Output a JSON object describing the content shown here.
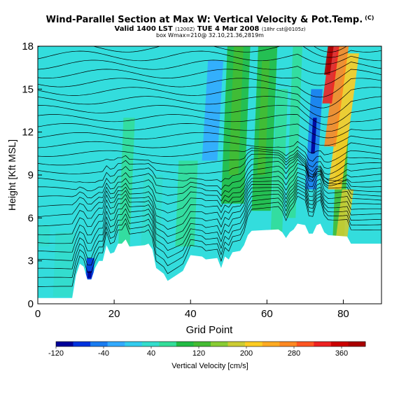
{
  "title": "Wind-Parallel Section at Max W: Vertical Velocity & Pot.Temp.",
  "title_copyright": "(C)",
  "subtitle": "Valid 1400 LST (1200Z) TUE 4 Mar 2008 (18hr cst@0105z)",
  "subtitle_main": "Valid 1400 LST",
  "subtitle_small1": "(1200Z)",
  "subtitle_mid": "TUE 4 Mar 2008",
  "subtitle_small2": "(18hr cst@0105z)",
  "subtitle2": "box Wmax=210@ 32.10,21.36,2819m",
  "chart_data": {
    "type": "heatmap",
    "title": "Wind-Parallel Section at Max W: Vertical Velocity & Pot.Temp.",
    "xlabel": "Grid Point",
    "ylabel": "Height [Kft MSL]",
    "xlim": [
      0,
      90
    ],
    "ylim": [
      0,
      18
    ],
    "xticks": [
      0,
      20,
      40,
      60,
      80
    ],
    "yticks": [
      0,
      3,
      6,
      9,
      12,
      15,
      18
    ],
    "colorbar": {
      "label": "Vertical Velocity [cm/s]",
      "tick_labels": [
        "-120",
        "-40",
        "40",
        "120",
        "200",
        "280",
        "360"
      ],
      "tick_values": [
        -120,
        -40,
        40,
        120,
        200,
        280,
        360
      ],
      "range": [
        -120,
        400
      ],
      "colors": [
        "#000099",
        "#0033dd",
        "#1a7cf0",
        "#33aaff",
        "#33ccee",
        "#33ddcc",
        "#33dd99",
        "#22bb44",
        "#44bb33",
        "#88cc33",
        "#cccc33",
        "#ffcc22",
        "#ffaa22",
        "#ff8822",
        "#ff5522",
        "#ee2222",
        "#cc0000",
        "#aa0000"
      ]
    },
    "velocity_features": [
      {
        "type": "updraft",
        "x": 75,
        "y_range": [
          8,
          18
        ],
        "peak_cm_s": 360
      },
      {
        "type": "downdraft",
        "x": 72,
        "y_range": [
          8,
          15
        ],
        "peak_cm_s": -120
      },
      {
        "type": "updraft",
        "x": 50,
        "y_range": [
          7,
          18
        ],
        "peak_cm_s": 120
      },
      {
        "type": "updraft",
        "x": 58,
        "y_range": [
          7,
          18
        ],
        "peak_cm_s": 120
      },
      {
        "type": "updraft",
        "x": 22,
        "y_range": [
          3,
          13
        ],
        "peak_cm_s": 80
      },
      {
        "type": "downdraft",
        "x": 45,
        "y_range": [
          10,
          17
        ],
        "peak_cm_s": -40
      },
      {
        "type": "downdraft",
        "x": 13.5,
        "y_range": [
          1.7,
          3
        ],
        "peak_cm_s": -120
      }
    ],
    "terrain_height_kft": [
      [
        0,
        0.4
      ],
      [
        3,
        0.4
      ],
      [
        9,
        0.4
      ],
      [
        10,
        2
      ],
      [
        11,
        2.8
      ],
      [
        12,
        2.6
      ],
      [
        13,
        1.7
      ],
      [
        14,
        1.7
      ],
      [
        15,
        2.5
      ],
      [
        16,
        3
      ],
      [
        17,
        3
      ],
      [
        18,
        4.1
      ],
      [
        19,
        3.5
      ],
      [
        20,
        3.6
      ],
      [
        21,
        4.2
      ],
      [
        22,
        4.2
      ],
      [
        23,
        4.5
      ],
      [
        24,
        4
      ],
      [
        28,
        4.1
      ],
      [
        29,
        4.2
      ],
      [
        30,
        3.8
      ],
      [
        31,
        2.5
      ],
      [
        32,
        2.3
      ],
      [
        33,
        2.1
      ],
      [
        34,
        1.6
      ],
      [
        38,
        2.3
      ],
      [
        40,
        3.4
      ],
      [
        43,
        3.3
      ],
      [
        44,
        3.1
      ],
      [
        47,
        3.2
      ],
      [
        48,
        2.5
      ],
      [
        49,
        3.3
      ],
      [
        50,
        3.1
      ],
      [
        51,
        3.6
      ],
      [
        53,
        3.7
      ],
      [
        54,
        4.1
      ],
      [
        55,
        4.8
      ],
      [
        56,
        5.1
      ],
      [
        63,
        5.2
      ],
      [
        64,
        5.0
      ],
      [
        65,
        4.6
      ],
      [
        66,
        5.0
      ],
      [
        67,
        5.2
      ],
      [
        68,
        5.6
      ],
      [
        70,
        5.5
      ],
      [
        71,
        4.9
      ],
      [
        72,
        4.9
      ],
      [
        73,
        5.5
      ],
      [
        74,
        5.6
      ],
      [
        75,
        5.0
      ],
      [
        76,
        4.8
      ],
      [
        81,
        4.7
      ],
      [
        82,
        4.2
      ],
      [
        90,
        4.2
      ]
    ]
  }
}
